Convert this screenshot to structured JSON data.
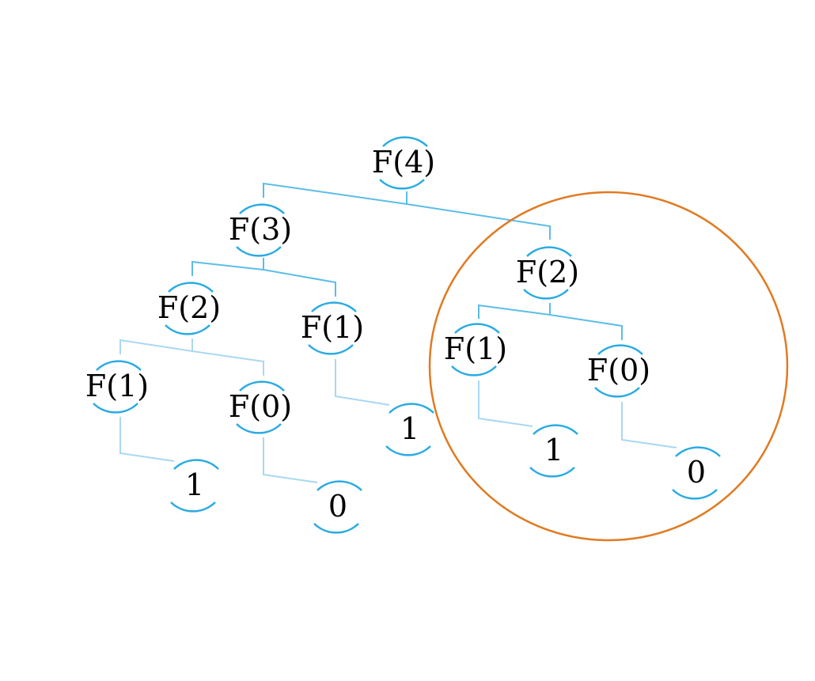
{
  "colors": {
    "connector_dark": "#5bbde8",
    "connector_light": "#a9d8f2",
    "node_arc": "#29abe2",
    "highlight": "#e07b22"
  },
  "nodes": [
    {
      "id": "f4",
      "label": "F(4)"
    },
    {
      "id": "f3",
      "label": "F(3)"
    },
    {
      "id": "f2-right",
      "label": "F(2)"
    },
    {
      "id": "f2-left",
      "label": "F(2)"
    },
    {
      "id": "f1-mid",
      "label": "F(1)"
    },
    {
      "id": "f1-right",
      "label": "F(1)"
    },
    {
      "id": "f0-right",
      "label": "F(0)"
    },
    {
      "id": "f1-left",
      "label": "F(1)"
    },
    {
      "id": "f0-left",
      "label": "F(0)"
    },
    {
      "id": "leaf-mid",
      "label": "1"
    },
    {
      "id": "leaf-right-1",
      "label": "1"
    },
    {
      "id": "leaf-right-0",
      "label": "0"
    },
    {
      "id": "leaf-left-1",
      "label": "1"
    },
    {
      "id": "leaf-left-0",
      "label": "0"
    }
  ],
  "edges": [
    [
      "f4",
      "f3"
    ],
    [
      "f4",
      "f2-right"
    ],
    [
      "f3",
      "f2-left"
    ],
    [
      "f3",
      "f1-mid"
    ],
    [
      "f2-right",
      "f1-right"
    ],
    [
      "f2-right",
      "f0-right"
    ],
    [
      "f2-left",
      "f1-left"
    ],
    [
      "f2-left",
      "f0-left"
    ],
    [
      "f1-mid",
      "leaf-mid"
    ],
    [
      "f1-right",
      "leaf-right-1"
    ],
    [
      "f0-right",
      "leaf-right-0"
    ],
    [
      "f1-left",
      "leaf-left-1"
    ],
    [
      "f0-left",
      "leaf-left-0"
    ]
  ],
  "highlight": {
    "target": "f2-right"
  }
}
